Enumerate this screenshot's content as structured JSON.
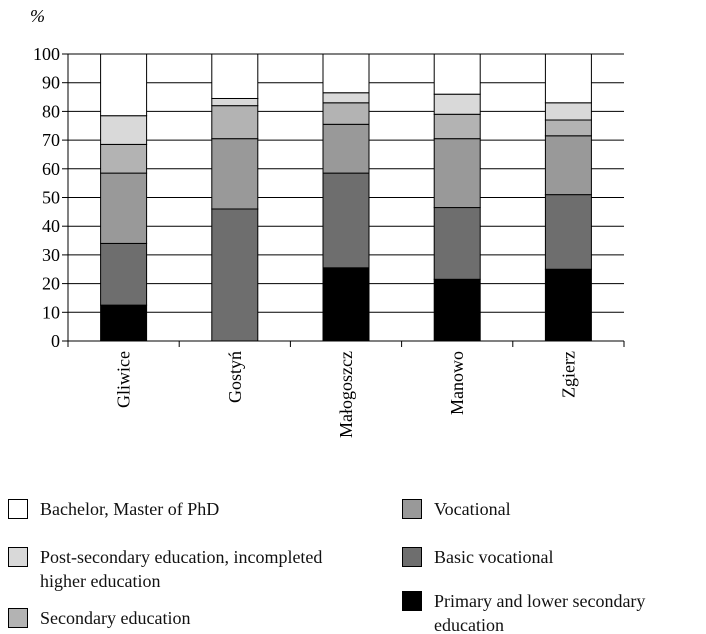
{
  "chart_data": {
    "type": "stacked_bar",
    "y_label": "%",
    "categories": [
      "Gliwice",
      "Gostyń",
      "Małogoszcz",
      "Manowo",
      "Zgierz"
    ],
    "series": [
      {
        "name": "Bachelor, Master of PhD",
        "color": "#ffffff",
        "values": [
          21.5,
          15.5,
          13.5,
          14,
          17
        ]
      },
      {
        "name": "Post-secondary education, incompleted higher education",
        "color": "#d9d9d9",
        "values": [
          10,
          2.5,
          3.5,
          7,
          6
        ]
      },
      {
        "name": "Secondary education",
        "color": "#b3b3b3",
        "values": [
          10,
          11.5,
          7.5,
          8.5,
          5.5
        ]
      },
      {
        "name": "Vocational",
        "color": "#999999",
        "values": [
          24.5,
          24.5,
          17,
          24,
          20.5
        ]
      },
      {
        "name": "Basic vocational",
        "color": "#6e6e6e",
        "values": [
          21.5,
          46,
          33,
          25,
          26
        ]
      },
      {
        "name": "Primary and lower secondary education",
        "color": "#000000",
        "values": [
          12.5,
          0,
          25.5,
          21.5,
          25
        ]
      }
    ],
    "ylim": [
      0,
      100
    ],
    "yticks": [
      0,
      10,
      20,
      30,
      40,
      50,
      60,
      70,
      80,
      90,
      100
    ],
    "grid": true
  }
}
